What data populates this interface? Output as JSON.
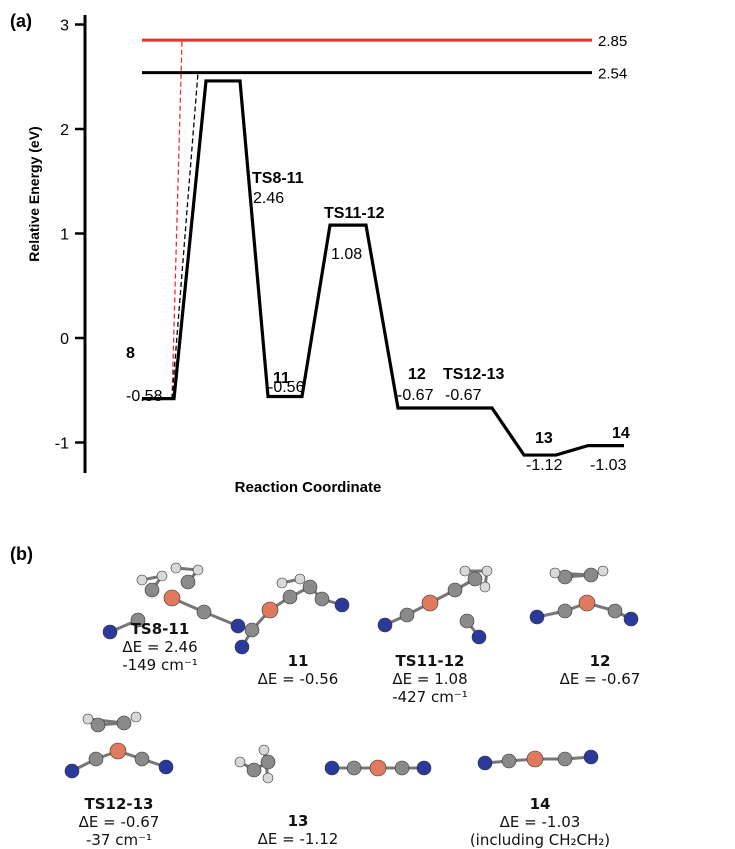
{
  "panel_a_label": "(a)",
  "panel_b_label": "(b)",
  "chart_data": {
    "type": "line",
    "xlabel": "Reaction Coordinate",
    "ylabel": "Relative Energy (eV)",
    "ylim": [
      -1.3,
      3.0
    ],
    "yticks": [
      3,
      2,
      1,
      0,
      -1
    ],
    "path": [
      {
        "name": "8",
        "value": -0.58,
        "value_label": "-0.58"
      },
      {
        "name": "TS8-11",
        "value": 2.46,
        "value_label": "2.46"
      },
      {
        "name": "11",
        "value": -0.56,
        "value_label": "-0.56"
      },
      {
        "name": "TS11-12",
        "value": 1.08,
        "value_label": "1.08"
      },
      {
        "name": "12",
        "value": -0.67,
        "value_label": "-0.67"
      },
      {
        "name": "TS12-13",
        "value": -0.67,
        "value_label": "-0.67"
      },
      {
        "name": "13",
        "value": -1.12,
        "value_label": "-1.12"
      },
      {
        "name": "14",
        "value": -1.03,
        "value_label": "-1.03"
      }
    ],
    "reference_lines": [
      {
        "value": 2.85,
        "label": "2.85",
        "color": "#e8302a"
      },
      {
        "value": 2.54,
        "label": "2.54",
        "color": "#000000"
      }
    ]
  },
  "structures": [
    {
      "name": "TS8-11",
      "lines": [
        "ΔE = 2.46",
        "-149 cm⁻¹"
      ]
    },
    {
      "name": "11",
      "lines": [
        "ΔE = -0.56"
      ]
    },
    {
      "name": "TS11-12",
      "lines": [
        "ΔE = 1.08",
        "-427 cm⁻¹"
      ]
    },
    {
      "name": "12",
      "lines": [
        "ΔE = -0.67"
      ]
    },
    {
      "name": "TS12-13",
      "lines": [
        "ΔE = -0.67",
        "-37 cm⁻¹"
      ]
    },
    {
      "name": "13",
      "lines": [
        "ΔE = -1.12"
      ]
    },
    {
      "name": "14",
      "lines": [
        "ΔE = -1.03",
        "(including CH₂CH₂)"
      ]
    }
  ],
  "colors": {
    "copper": "#e07a5f",
    "nitrogen": "#2b3a9a",
    "carbon": "#8a8a8a",
    "hydrogen": "#d8d8d8"
  }
}
